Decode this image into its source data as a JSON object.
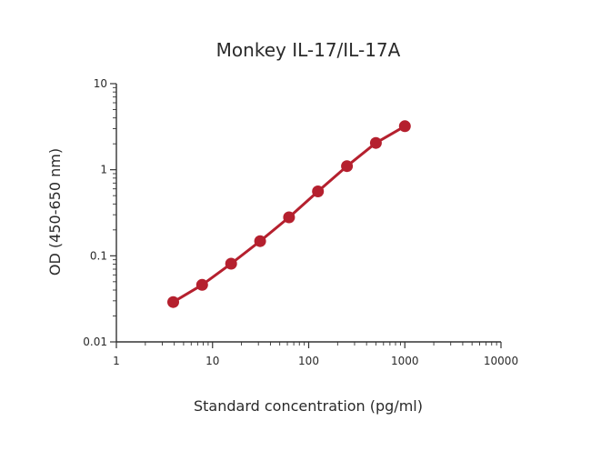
{
  "chart_data": {
    "type": "line",
    "title": "Monkey IL-17/IL-17A",
    "xlabel": "Standard concentration (pg/ml)",
    "ylabel": "OD (450-650 nm)",
    "x_scale": "log",
    "y_scale": "log",
    "xlim": [
      1,
      10000
    ],
    "ylim": [
      0.01,
      10
    ],
    "x_ticks": [
      {
        "value": 1,
        "label": "1"
      },
      {
        "value": 10,
        "label": "10"
      },
      {
        "value": 100,
        "label": "100"
      },
      {
        "value": 1000,
        "label": "1000"
      },
      {
        "value": 10000,
        "label": "10000"
      }
    ],
    "y_ticks": [
      {
        "value": 0.01,
        "label": "0.01"
      },
      {
        "value": 0.1,
        "label": "0.1"
      },
      {
        "value": 1,
        "label": "1"
      },
      {
        "value": 10,
        "label": "10"
      }
    ],
    "grid": false,
    "legend": "none",
    "series": [
      {
        "color": "#b5202e",
        "x": [
          3.9,
          7.8,
          15.6,
          31.25,
          62.5,
          125,
          250,
          500,
          1000
        ],
        "y": [
          0.029,
          0.046,
          0.081,
          0.148,
          0.28,
          0.56,
          1.1,
          2.05,
          3.2
        ]
      }
    ]
  }
}
